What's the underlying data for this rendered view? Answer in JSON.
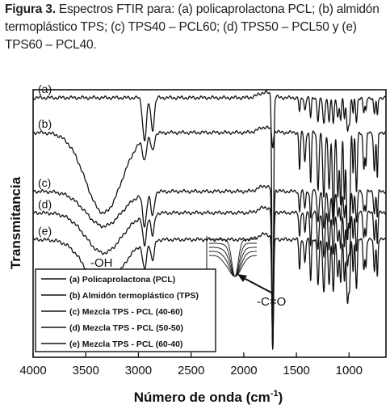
{
  "caption": {
    "label": "Figura 3.",
    "text": " Espectros FTIR para: (a) policaprolactona PCL; (b) almidón termoplástico TPS; (c) TPS40 – PCL60; (d) TPS50 – PCL50 y (e) TPS60 – PCL40."
  },
  "chart_data": {
    "type": "line",
    "xlabel": "Número de onda (cm",
    "xlabel_sup": "-1",
    "xlabel_end": ")",
    "ylabel": "Transmitancia",
    "xlim": [
      4000,
      650
    ],
    "x_reversed": true,
    "x_ticks": [
      4000,
      3500,
      3000,
      2500,
      2000,
      1500,
      1000
    ],
    "y_ticks_shown": false,
    "grid": false,
    "annotations": [
      {
        "text": "-OH",
        "x": 3340
      },
      {
        "text": "-C=O",
        "x": 1725
      }
    ],
    "inset": "zoomed carbonyl band (1725 cm-1) of the series",
    "legend": {
      "placement": "bottom-left",
      "entries": [
        "(a) Policaprolactona (PCL)",
        "(b) Almidón termoplástico (TPS)",
        "(c) Mezcla TPS - PCL (40-60)",
        "(d) Mezcla TPS - PCL (50-50)",
        "(e) Mezcla TPS - PCL (60-40)"
      ]
    },
    "series": [
      {
        "tag": "(a)",
        "baseline": 0.97,
        "oh_depth": 0.0,
        "ch_depth": 0.16,
        "co_depth": 0.9,
        "fp_depth": 0.22
      },
      {
        "tag": "(b)",
        "baseline": 0.84,
        "oh_depth": 0.3,
        "ch_depth": 0.08,
        "co_depth": 0.06,
        "fp_depth": 0.55
      },
      {
        "tag": "(c)",
        "baseline": 0.62,
        "oh_depth": 0.13,
        "ch_depth": 0.12,
        "co_depth": 0.6,
        "fp_depth": 0.3
      },
      {
        "tag": "(d)",
        "baseline": 0.54,
        "oh_depth": 0.15,
        "ch_depth": 0.11,
        "co_depth": 0.52,
        "fp_depth": 0.36
      },
      {
        "tag": "(e)",
        "baseline": 0.44,
        "oh_depth": 0.18,
        "ch_depth": 0.1,
        "co_depth": 0.42,
        "fp_depth": 0.44
      }
    ]
  }
}
